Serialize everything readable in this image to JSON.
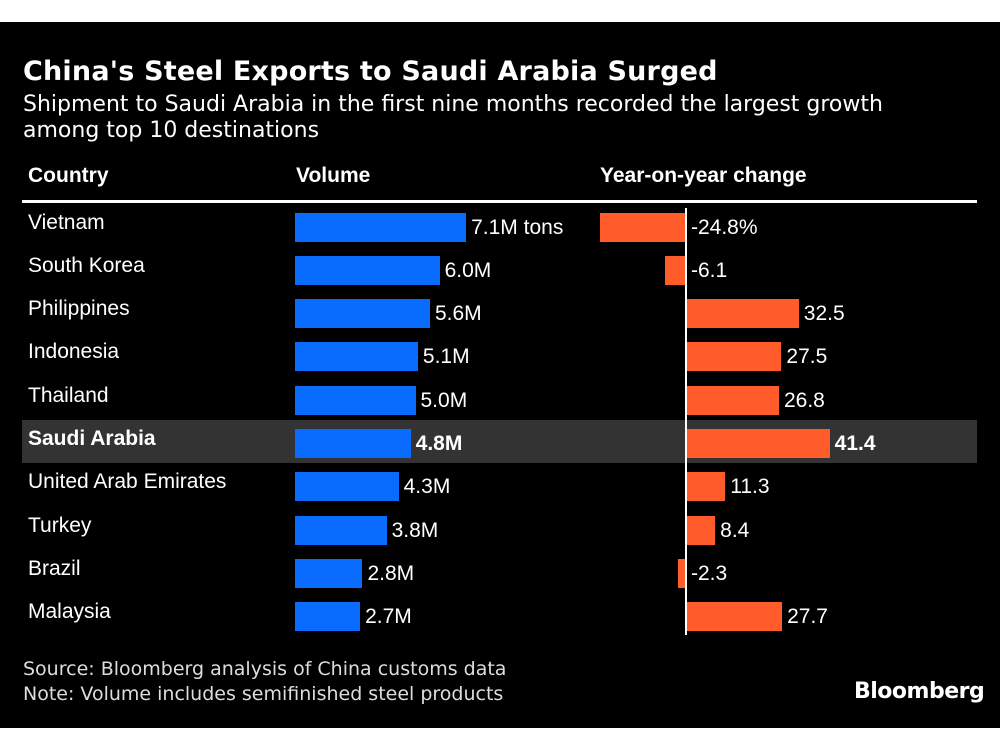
{
  "chart_data": {
    "type": "bar",
    "title": "China's Steel Exports to Saudi Arabia Surged",
    "subtitle": "Shipment to Saudi Arabia in the first nine months recorded the largest growth among top 10 destinations",
    "columns": [
      "Country",
      "Volume",
      "Year-on-year change"
    ],
    "categories": [
      "Vietnam",
      "South Korea",
      "Philippines",
      "Indonesia",
      "Thailand",
      "Saudi Arabia",
      "United Arab Emirates",
      "Turkey",
      "Brazil",
      "Malaysia"
    ],
    "highlight": "Saudi Arabia",
    "series": [
      {
        "name": "Volume",
        "unit": "M tons",
        "values": [
          7.1,
          6.0,
          5.6,
          5.1,
          5.0,
          4.8,
          4.3,
          3.8,
          2.8,
          2.7
        ],
        "labels": [
          "7.1M tons",
          "6.0M",
          "5.6M",
          "5.1M",
          "5.0M",
          "4.8M",
          "4.3M",
          "3.8M",
          "2.8M",
          "2.7M"
        ]
      },
      {
        "name": "Year-on-year change",
        "unit": "%",
        "values": [
          -24.8,
          -6.1,
          32.5,
          27.5,
          26.8,
          41.4,
          11.3,
          8.4,
          -2.3,
          27.7
        ],
        "labels": [
          "-24.8%",
          "-6.1",
          "32.5",
          "27.5",
          "26.8",
          "41.4",
          "11.3",
          "8.4",
          "-2.3",
          "27.7"
        ]
      }
    ],
    "colors": {
      "volume": "#0a6cff",
      "change": "#ff5b2b",
      "highlight_band": "#333333",
      "background": "#000000"
    }
  },
  "footer": {
    "source": "Source: Bloomberg analysis of China customs data",
    "note": "Note: Volume includes semifinished steel products",
    "logo": "Bloomberg"
  }
}
